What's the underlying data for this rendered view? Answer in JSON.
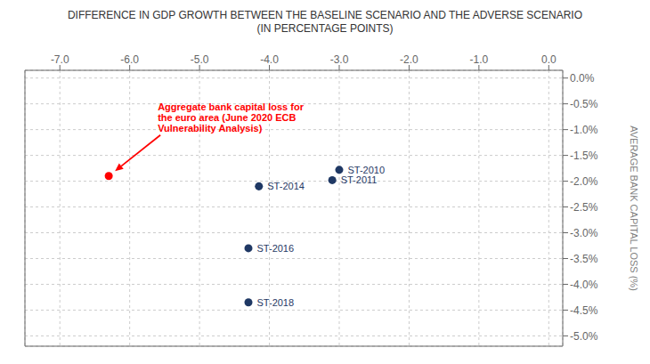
{
  "chart_data": {
    "type": "scatter",
    "title": "DIFFERENCE IN GDP GROWTH BETWEEN THE BASELINE SCENARIO AND THE ADVERSE SCENARIO",
    "subtitle": "(IN PERCENTAGE POINTS)",
    "y_label": "AVERAGE BANK CAPITAL LOSS (%)",
    "xlim": [
      -7.5,
      0.2
    ],
    "ylim": [
      -5.2,
      0.15
    ],
    "xticks": [
      {
        "value": -7.0,
        "label": "-7.0"
      },
      {
        "value": -6.0,
        "label": "-6.0"
      },
      {
        "value": -5.0,
        "label": "-5.0"
      },
      {
        "value": -4.0,
        "label": "-4.0"
      },
      {
        "value": -3.0,
        "label": "-3.0"
      },
      {
        "value": -2.0,
        "label": "-2.0"
      },
      {
        "value": -1.0,
        "label": "-1.0"
      },
      {
        "value": 0.0,
        "label": "0.0"
      }
    ],
    "yticks": [
      {
        "value": 0.0,
        "label": "0.0%"
      },
      {
        "value": -0.5,
        "label": "-0.5%"
      },
      {
        "value": -1.0,
        "label": "-1.0%"
      },
      {
        "value": -1.5,
        "label": "-1.5%"
      },
      {
        "value": -2.0,
        "label": "-2.0%"
      },
      {
        "value": -2.5,
        "label": "-2.5%"
      },
      {
        "value": -3.0,
        "label": "-3.0%"
      },
      {
        "value": -3.5,
        "label": "-3.5%"
      },
      {
        "value": -4.0,
        "label": "-4.0%"
      },
      {
        "value": -4.5,
        "label": "-4.5%"
      },
      {
        "value": -5.0,
        "label": "-5.0%"
      }
    ],
    "grid": true,
    "series": [
      {
        "color": "#1f3864",
        "marker": "circle",
        "x": [
          -3.0,
          -3.1,
          -4.15,
          -4.3,
          -4.3
        ],
        "y": [
          -1.78,
          -1.98,
          -2.1,
          -3.3,
          -4.35
        ],
        "labels": [
          "ST-2010",
          "ST-2011",
          "ST-2014",
          "ST-2016",
          "ST-2018"
        ]
      },
      {
        "color": "#ff0000",
        "marker": "circle",
        "x": [
          -6.3
        ],
        "y": [
          -1.9
        ]
      }
    ],
    "annotations": [
      {
        "text": "Aggregate bank capital loss for\nthe euro area (June 2020 ECB\nVulnerability Analysis)",
        "x": -6.3,
        "y": -1.9
      }
    ]
  }
}
